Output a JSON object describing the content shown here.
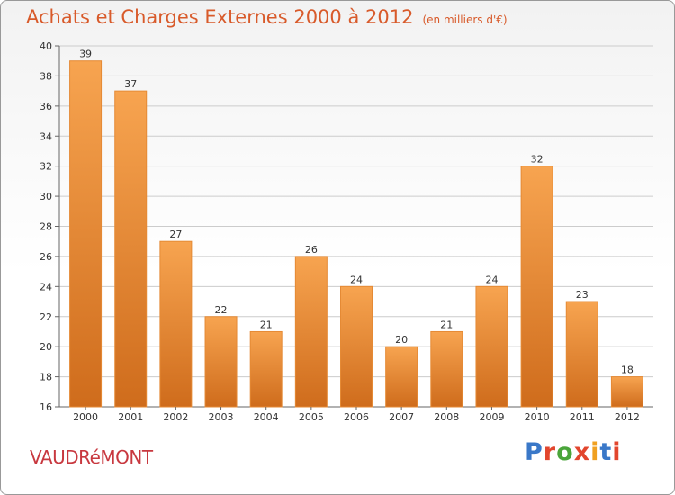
{
  "header": {
    "title": "Achats et Charges Externes 2000 à 2012",
    "unit": "(en milliers d'€)"
  },
  "footer": {
    "place": "VAUDRéMONT",
    "logo": "Proxiti"
  },
  "colors": {
    "bar_top": "#f7a450",
    "bar_bottom": "#cf6c1c",
    "bar_stroke": "#e58a35",
    "grid": "#cccccc",
    "axis": "#666666",
    "title": "#d85a2a",
    "logo": [
      "#3a78c8",
      "#e2462e",
      "#4aa53a",
      "#e2462e",
      "#f0a020",
      "#3a78c8",
      "#e2462e"
    ]
  },
  "chart_data": {
    "type": "bar",
    "title": "Achats et Charges Externes 2000 à 2012",
    "subtitle": "(en milliers d'€)",
    "xlabel": "",
    "ylabel": "",
    "categories": [
      "2000",
      "2001",
      "2002",
      "2003",
      "2004",
      "2005",
      "2006",
      "2007",
      "2008",
      "2009",
      "2010",
      "2011",
      "2012"
    ],
    "values": [
      39,
      37,
      27,
      22,
      21,
      26,
      24,
      20,
      21,
      24,
      32,
      23,
      18
    ],
    "ylim": [
      16,
      40
    ],
    "yticks": [
      16,
      18,
      20,
      22,
      24,
      26,
      28,
      30,
      32,
      34,
      36,
      38,
      40
    ],
    "grid": true,
    "legend": "none"
  }
}
